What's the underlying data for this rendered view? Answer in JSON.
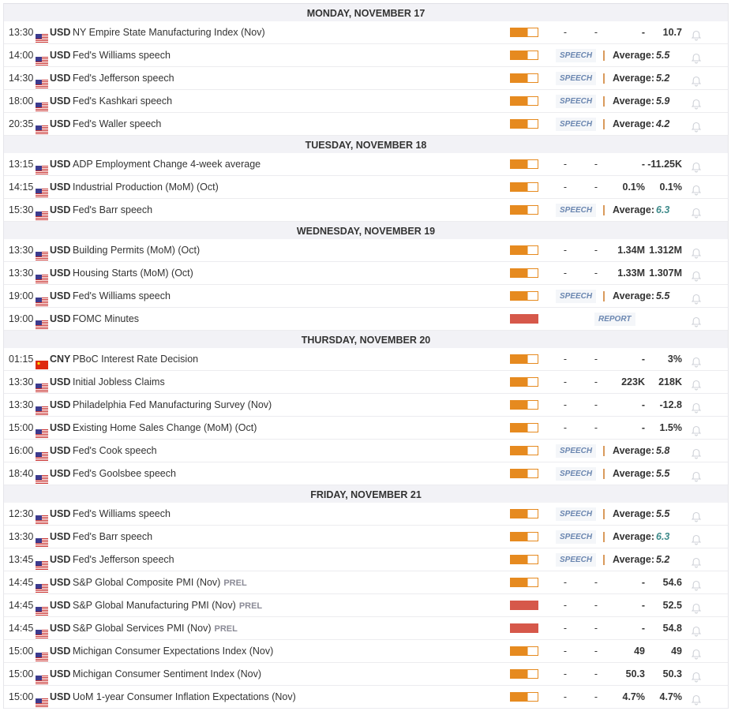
{
  "colors": {
    "impact_medium": "#e68a1f",
    "impact_high": "#d6584a",
    "tag_text": "#6a86b0"
  },
  "days": [
    {
      "label": "MONDAY, NOVEMBER 17",
      "events": [
        {
          "time": "13:30",
          "flag": "us-flag",
          "currency": "USD",
          "name": "NY Empire State Manufacturing Index (Nov)",
          "impact": "medium",
          "actual": "-",
          "deviation": "-",
          "consensus": "-",
          "previous": "10.7"
        },
        {
          "time": "14:00",
          "flag": "us-flag",
          "currency": "USD",
          "name": "Fed's Williams speech",
          "impact": "medium",
          "tag": "SPEECH",
          "avg_label": "Average:",
          "avg": "5.5"
        },
        {
          "time": "14:30",
          "flag": "us-flag",
          "currency": "USD",
          "name": "Fed's Jefferson speech",
          "impact": "medium",
          "tag": "SPEECH",
          "avg_label": "Average:",
          "avg": "5.2"
        },
        {
          "time": "18:00",
          "flag": "us-flag",
          "currency": "USD",
          "name": "Fed's Kashkari speech",
          "impact": "medium",
          "tag": "SPEECH",
          "avg_label": "Average:",
          "avg": "5.9"
        },
        {
          "time": "20:35",
          "flag": "us-flag",
          "currency": "USD",
          "name": "Fed's Waller speech",
          "impact": "medium",
          "tag": "SPEECH",
          "avg_label": "Average:",
          "avg": "4.2"
        }
      ]
    },
    {
      "label": "TUESDAY, NOVEMBER 18",
      "events": [
        {
          "time": "13:15",
          "flag": "us-flag",
          "currency": "USD",
          "name": "ADP Employment Change 4-week average",
          "impact": "medium",
          "actual": "-",
          "deviation": "-",
          "consensus": "-",
          "previous": "-11.25K"
        },
        {
          "time": "14:15",
          "flag": "us-flag",
          "currency": "USD",
          "name": "Industrial Production (MoM) (Oct)",
          "impact": "medium",
          "actual": "-",
          "deviation": "-",
          "consensus": "0.1%",
          "previous": "0.1%"
        },
        {
          "time": "15:30",
          "flag": "us-flag",
          "currency": "USD",
          "name": "Fed's Barr speech",
          "impact": "medium",
          "tag": "SPEECH",
          "avg_label": "Average:",
          "avg": "6.3",
          "avg_teal": true
        }
      ]
    },
    {
      "label": "WEDNESDAY, NOVEMBER 19",
      "events": [
        {
          "time": "13:30",
          "flag": "us-flag",
          "currency": "USD",
          "name": "Building Permits (MoM) (Oct)",
          "impact": "medium",
          "actual": "-",
          "deviation": "-",
          "consensus": "1.34M",
          "previous": "1.312M"
        },
        {
          "time": "13:30",
          "flag": "us-flag",
          "currency": "USD",
          "name": "Housing Starts (MoM) (Oct)",
          "impact": "medium",
          "actual": "-",
          "deviation": "-",
          "consensus": "1.33M",
          "previous": "1.307M"
        },
        {
          "time": "19:00",
          "flag": "us-flag",
          "currency": "USD",
          "name": "Fed's Williams speech",
          "impact": "medium",
          "tag": "SPEECH",
          "avg_label": "Average:",
          "avg": "5.5"
        },
        {
          "time": "19:00",
          "flag": "us-flag",
          "currency": "USD",
          "name": "FOMC Minutes",
          "impact": "high",
          "report": "REPORT"
        }
      ]
    },
    {
      "label": "THURSDAY, NOVEMBER 20",
      "events": [
        {
          "time": "01:15",
          "flag": "cn-flag",
          "currency": "CNY",
          "name": "PBoC Interest Rate Decision",
          "impact": "medium",
          "actual": "-",
          "deviation": "-",
          "consensus": "-",
          "previous": "3%"
        },
        {
          "time": "13:30",
          "flag": "us-flag",
          "currency": "USD",
          "name": "Initial Jobless Claims",
          "impact": "medium",
          "actual": "-",
          "deviation": "-",
          "consensus": "223K",
          "previous": "218K"
        },
        {
          "time": "13:30",
          "flag": "us-flag",
          "currency": "USD",
          "name": "Philadelphia Fed Manufacturing Survey (Nov)",
          "impact": "medium",
          "actual": "-",
          "deviation": "-",
          "consensus": "-",
          "previous": "-12.8"
        },
        {
          "time": "15:00",
          "flag": "us-flag",
          "currency": "USD",
          "name": "Existing Home Sales Change (MoM) (Oct)",
          "impact": "medium",
          "actual": "-",
          "deviation": "-",
          "consensus": "-",
          "previous": "1.5%"
        },
        {
          "time": "16:00",
          "flag": "us-flag",
          "currency": "USD",
          "name": "Fed's Cook speech",
          "impact": "medium",
          "tag": "SPEECH",
          "avg_label": "Average:",
          "avg": "5.8"
        },
        {
          "time": "18:40",
          "flag": "us-flag",
          "currency": "USD",
          "name": "Fed's Goolsbee speech",
          "impact": "medium",
          "tag": "SPEECH",
          "avg_label": "Average:",
          "avg": "5.5"
        }
      ]
    },
    {
      "label": "FRIDAY, NOVEMBER 21",
      "events": [
        {
          "time": "12:30",
          "flag": "us-flag",
          "currency": "USD",
          "name": "Fed's Williams speech",
          "impact": "medium",
          "tag": "SPEECH",
          "avg_label": "Average:",
          "avg": "5.5"
        },
        {
          "time": "13:30",
          "flag": "us-flag",
          "currency": "USD",
          "name": "Fed's Barr speech",
          "impact": "medium",
          "tag": "SPEECH",
          "avg_label": "Average:",
          "avg": "6.3",
          "avg_teal": true
        },
        {
          "time": "13:45",
          "flag": "us-flag",
          "currency": "USD",
          "name": "Fed's Jefferson speech",
          "impact": "medium",
          "tag": "SPEECH",
          "avg_label": "Average:",
          "avg": "5.2"
        },
        {
          "time": "14:45",
          "flag": "us-flag",
          "currency": "USD",
          "name": "S&P Global Composite PMI (Nov)",
          "prel": "PREL",
          "impact": "medium",
          "actual": "-",
          "deviation": "-",
          "consensus": "-",
          "previous": "54.6"
        },
        {
          "time": "14:45",
          "flag": "us-flag",
          "currency": "USD",
          "name": "S&P Global Manufacturing PMI (Nov)",
          "prel": "PREL",
          "impact": "high",
          "actual": "-",
          "deviation": "-",
          "consensus": "-",
          "previous": "52.5"
        },
        {
          "time": "14:45",
          "flag": "us-flag",
          "currency": "USD",
          "name": "S&P Global Services PMI (Nov)",
          "prel": "PREL",
          "impact": "high",
          "actual": "-",
          "deviation": "-",
          "consensus": "-",
          "previous": "54.8"
        },
        {
          "time": "15:00",
          "flag": "us-flag",
          "currency": "USD",
          "name": "Michigan Consumer Expectations Index (Nov)",
          "impact": "medium",
          "actual": "-",
          "deviation": "-",
          "consensus": "49",
          "previous": "49"
        },
        {
          "time": "15:00",
          "flag": "us-flag",
          "currency": "USD",
          "name": "Michigan Consumer Sentiment Index (Nov)",
          "impact": "medium",
          "actual": "-",
          "deviation": "-",
          "consensus": "50.3",
          "previous": "50.3"
        },
        {
          "time": "15:00",
          "flag": "us-flag",
          "currency": "USD",
          "name": "UoM 1-year Consumer Inflation Expectations (Nov)",
          "impact": "medium",
          "actual": "-",
          "deviation": "-",
          "consensus": "4.7%",
          "previous": "4.7%"
        }
      ]
    }
  ]
}
